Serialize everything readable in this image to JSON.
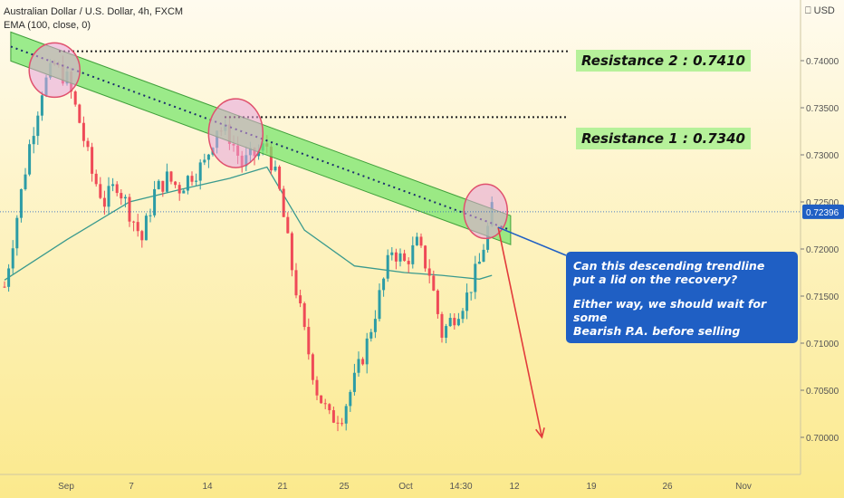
{
  "header": {
    "symbol": "Australian Dollar / U.S. Dollar, 4h, FXCM",
    "indicator": "EMA (100, close, 0)"
  },
  "currency_button": "USD",
  "annotations": {
    "resistance_2": "Resistance 2 : 0.7410",
    "resistance_1": "Resistance 1 : 0.7340",
    "callout_q1": "Can this descending trendline",
    "callout_q2": "put a lid on the recovery?",
    "callout_a1": "Either way, we should wait for some",
    "callout_a2": "Bearish P.A. before selling"
  },
  "colors": {
    "bull": "#2c9ca6",
    "bear": "#ef4a57",
    "ema": "#3a9a8e",
    "channel": "#7ae56e",
    "circle": "#e6a2dc",
    "arrow": "#e23b3b",
    "price_tag": "#1f5fc4",
    "callout": "#1f5fc4"
  },
  "chart_data": {
    "type": "candlestick",
    "title": "Australian Dollar / U.S. Dollar, 4h, FXCM",
    "ylim": [
      0.6955,
      0.745
    ],
    "y_ticks": [
      "0.74000",
      "0.73500",
      "0.73000",
      "0.72500",
      "0.72000",
      "0.71500",
      "0.71000",
      "0.70500",
      "0.70000"
    ],
    "y_tick_values": [
      0.74,
      0.735,
      0.73,
      0.725,
      0.72,
      0.715,
      0.71,
      0.705,
      0.7
    ],
    "x_ticks": [
      "Sep",
      "7",
      "14",
      "21",
      "25",
      "Oct",
      "14:30",
      "12",
      "19",
      "26",
      "Nov"
    ],
    "last_price": "0.72396",
    "last_price_value": 0.72396,
    "price_path": [
      0.716,
      0.7235,
      0.731,
      0.737,
      0.7395,
      0.738,
      0.7335,
      0.728,
      0.725,
      0.727,
      0.724,
      0.721,
      0.726,
      0.7275,
      0.7265,
      0.728,
      0.729,
      0.733,
      0.732,
      0.729,
      0.73,
      0.731,
      0.726,
      0.718,
      0.711,
      0.705,
      0.702,
      0.7025,
      0.706,
      0.71,
      0.715,
      0.72,
      0.7185,
      0.7205,
      0.7175,
      0.711,
      0.713,
      0.715,
      0.7185,
      0.724
    ],
    "ema_100": [
      {
        "x": 0.0,
        "y": 0.7167
      },
      {
        "x": 5.0,
        "y": 0.721
      },
      {
        "x": 10.0,
        "y": 0.725
      },
      {
        "x": 14.0,
        "y": 0.7263
      },
      {
        "x": 18.0,
        "y": 0.7275
      },
      {
        "x": 21.0,
        "y": 0.7287
      },
      {
        "x": 24.0,
        "y": 0.722
      },
      {
        "x": 28.0,
        "y": 0.7182
      },
      {
        "x": 32.0,
        "y": 0.7175
      },
      {
        "x": 35.0,
        "y": 0.7172
      },
      {
        "x": 38.0,
        "y": 0.7168
      },
      {
        "x": 39.0,
        "y": 0.7172
      }
    ],
    "horizontal_levels": [
      0.741,
      0.734
    ],
    "trendline": [
      {
        "x": 0.5,
        "y": 0.7415
      },
      {
        "x": 40.5,
        "y": 0.722
      }
    ],
    "forecast_arrow": [
      {
        "x": 39.5,
        "y": 0.7223
      },
      {
        "x": 43.0,
        "y": 0.7
      }
    ]
  }
}
